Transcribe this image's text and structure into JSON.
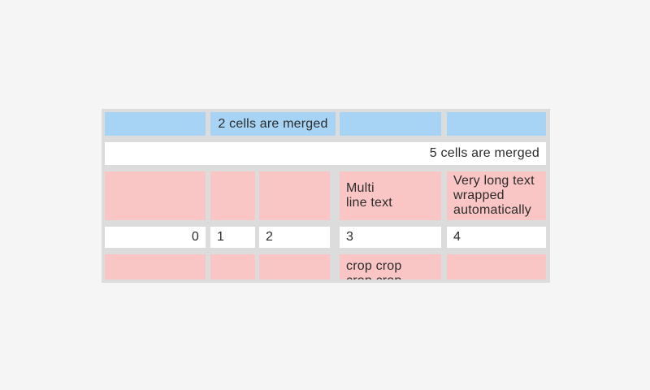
{
  "screen": {
    "background": "#f5f5f5"
  },
  "table": {
    "columns": 5,
    "visible_rows": 5,
    "last_row_cropped": true,
    "colors": {
      "screen_bg": "#f5f5f5",
      "grid_gray": "#dcdcdc",
      "header_blue": "#a7d4f5",
      "highlight_pink": "#fac6c5",
      "cell_white": "#ffffff",
      "text": "#2b2b2b"
    },
    "rows": [
      {
        "style": "blue",
        "cells": [
          {
            "col": 1,
            "text": ""
          },
          {
            "col": "2-3",
            "span": 2,
            "align": "center",
            "text": "2 cells are merged"
          },
          {
            "col": 4,
            "text": ""
          },
          {
            "col": 5,
            "text": ""
          }
        ]
      },
      {
        "style": "white",
        "cells": [
          {
            "col": "1-5",
            "span": 5,
            "align": "right",
            "text": "5 cells are merged"
          }
        ]
      },
      {
        "style": "pink",
        "cells": [
          {
            "col": 1,
            "text": ""
          },
          {
            "col": 2,
            "text": ""
          },
          {
            "col": 3,
            "text": ""
          },
          {
            "col": 4,
            "text": "Multi\nline text"
          },
          {
            "col": 5,
            "text": "Very long text\nwrapped\nautomatically"
          }
        ]
      },
      {
        "style": "white",
        "cells": [
          {
            "col": 1,
            "align": "right",
            "text": "0"
          },
          {
            "col": 2,
            "text": "1"
          },
          {
            "col": 3,
            "text": "2"
          },
          {
            "col": 4,
            "text": "3"
          },
          {
            "col": 5,
            "text": "4"
          }
        ]
      },
      {
        "style": "pink",
        "cells": [
          {
            "col": 1,
            "text": ""
          },
          {
            "col": 2,
            "text": ""
          },
          {
            "col": 3,
            "text": ""
          },
          {
            "col": 4,
            "cropped": true,
            "text": "crop crop\ncrop crop"
          },
          {
            "col": 5,
            "text": ""
          }
        ]
      }
    ]
  }
}
